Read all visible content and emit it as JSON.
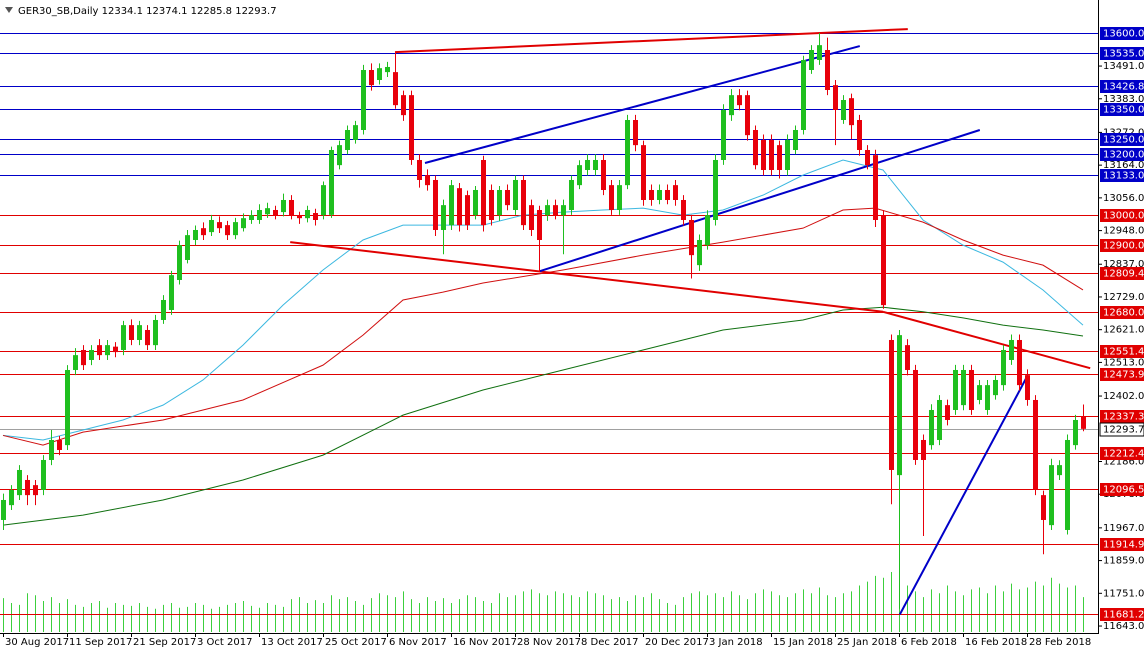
{
  "chart_data": {
    "type": "candlestick",
    "title": "GER30_SB,Daily  12334.1 12374.1 12285.8 12293.7",
    "categories": [
      "30 Aug 2017",
      null,
      null,
      null,
      null,
      null,
      null,
      null,
      "11 Sep 2017",
      null,
      null,
      null,
      null,
      null,
      null,
      null,
      "21 Sep 2017",
      null,
      null,
      null,
      null,
      null,
      null,
      null,
      "3 Oct 2017",
      null,
      null,
      null,
      null,
      null,
      null,
      null,
      "13 Oct 2017",
      null,
      null,
      null,
      null,
      null,
      null,
      null,
      "25 Oct 2017",
      null,
      null,
      null,
      null,
      null,
      null,
      null,
      "6 Nov 2017",
      null,
      null,
      null,
      null,
      null,
      null,
      null,
      "16 Nov 2017",
      null,
      null,
      null,
      null,
      null,
      null,
      null,
      "28 Nov 2017",
      null,
      null,
      null,
      null,
      null,
      null,
      null,
      "8 Dec 2017",
      null,
      null,
      null,
      null,
      null,
      null,
      null,
      "20 Dec 2017",
      null,
      null,
      null,
      null,
      null,
      null,
      null,
      "3 Jan 2018",
      null,
      null,
      null,
      null,
      null,
      null,
      null,
      "15 Jan 2018",
      null,
      null,
      null,
      null,
      null,
      null,
      null,
      "25 Jan 2018",
      null,
      null,
      null,
      null,
      null,
      null,
      null,
      "6 Feb 2018",
      null,
      null,
      null,
      null,
      null,
      null,
      null,
      "16 Feb 2018",
      null,
      null,
      null,
      null,
      null,
      null,
      null,
      "28 Feb 2018",
      null,
      null,
      null,
      null,
      null,
      null,
      null
    ],
    "open": [
      11993,
      12042,
      12075,
      12125,
      12108,
      12092,
      12191,
      12257,
      12240,
      12488,
      12554,
      12521,
      12570,
      12537,
      12565,
      12554,
      12636,
      12587,
      12620,
      12570,
      12653,
      12686,
      12785,
      12851,
      12917,
      12956,
      12943,
      12976,
      12966,
      12933,
      12956,
      12983,
      12983,
      13002,
      13016,
      13009,
      13049,
      12999,
      12989,
      13006,
      12999,
      13000,
      13164,
      13214,
      13247,
      13280,
      13478,
      13445,
      13471,
      13471,
      13395,
      13395,
      13181,
      13131,
      13115,
      12950,
      12966,
      13088,
      13065,
      12999,
      13181,
      13082,
      12999,
      13082,
      13016,
      13115,
      13032,
      13016,
      12999,
      13032,
      12999,
      13016,
      13098,
      13148,
      13148,
      13181,
      13098,
      13016,
      13098,
      13313,
      13230,
      13082,
      13049,
      13082,
      13098,
      13049,
      12983,
      12834,
      12900,
      12983,
      13181,
      13329,
      13395,
      13395,
      13280,
      13247,
      13247,
      13230,
      13148,
      13214,
      13280,
      13478,
      13511,
      13544,
      13428,
      13313,
      13385,
      13313,
      13214,
      13197,
      12999,
      12587,
      12141,
      12570,
      12488,
      12257,
      12240,
      12257,
      12372,
      12356,
      12372,
      12488,
      12389,
      12356,
      12405,
      12438,
      12521,
      12587,
      12471,
      12389,
      12075,
      11976,
      12141,
      11960,
      12240,
      12334.1
    ],
    "high": [
      12080,
      12108,
      12174,
      12141,
      12125,
      12207,
      12290,
      12270,
      12504,
      12560,
      12570,
      12570,
      12590,
      12587,
      12580,
      12650,
      12655,
      12650,
      12636,
      12670,
      12735,
      12815,
      12915,
      12950,
      12965,
      12975,
      13000,
      12995,
      12980,
      12990,
      13005,
      13015,
      13035,
      13040,
      13030,
      13070,
      13065,
      13010,
      13030,
      13020,
      13110,
      13225,
      13245,
      13295,
      13310,
      13495,
      13500,
      13500,
      13505,
      13535,
      13410,
      13410,
      13200,
      13150,
      13130,
      13050,
      13115,
      13105,
      13080,
      13095,
      13195,
      13100,
      13095,
      13100,
      13130,
      13130,
      13050,
      13030,
      13050,
      13050,
      13050,
      13130,
      13180,
      13200,
      13200,
      13200,
      13115,
      13115,
      13330,
      13330,
      13245,
      13100,
      13100,
      13100,
      13115,
      13065,
      13000,
      12935,
      13015,
      13200,
      13365,
      13415,
      13415,
      13410,
      13295,
      13265,
      13265,
      13245,
      13265,
      13295,
      13525,
      13560,
      13600,
      13585,
      13445,
      13395,
      13400,
      13330,
      13230,
      13215,
      13015,
      12605,
      12620,
      12590,
      12505,
      12275,
      12375,
      12405,
      12390,
      12505,
      12505,
      12505,
      12455,
      12455,
      12470,
      12570,
      12605,
      12605,
      12490,
      12405,
      12090,
      12195,
      12190,
      12275,
      12340,
      12374.1
    ],
    "low": [
      11960,
      12026,
      12059,
      12042,
      12042,
      12075,
      12174,
      12207,
      12224,
      12471,
      12488,
      12504,
      12521,
      12521,
      12530,
      12537,
      12570,
      12570,
      12554,
      12554,
      12640,
      12670,
      12770,
      12840,
      12900,
      12917,
      12930,
      12940,
      12917,
      12920,
      12945,
      12970,
      12970,
      12990,
      12985,
      12995,
      12985,
      12970,
      12975,
      12965,
      12985,
      12990,
      13150,
      13200,
      13235,
      13265,
      13410,
      13430,
      13455,
      13350,
      13310,
      13165,
      13090,
      13080,
      12930,
      12870,
      12950,
      12945,
      12950,
      12985,
      12945,
      12965,
      12980,
      13015,
      13000,
      12950,
      12930,
      12810,
      12980,
      12985,
      12870,
      13000,
      13085,
      13130,
      13130,
      13065,
      13000,
      13000,
      13085,
      13210,
      13030,
      13030,
      13035,
      13035,
      13030,
      12965,
      12790,
      12815,
      12885,
      12965,
      13165,
      13310,
      13345,
      13245,
      13150,
      13130,
      13130,
      13120,
      13130,
      13200,
      13265,
      13465,
      13495,
      13395,
      13230,
      13300,
      13250,
      13195,
      13150,
      12960,
      12690,
      12045,
      11700,
      12470,
      12175,
      11940,
      12225,
      12240,
      12305,
      12340,
      12355,
      12340,
      12375,
      12340,
      12390,
      12420,
      12505,
      12420,
      12370,
      12075,
      11880,
      11960,
      12125,
      11945,
      12225,
      12285.8
    ],
    "close": [
      12059,
      12092,
      12158,
      12075,
      12075,
      12191,
      12257,
      12224,
      12488,
      12537,
      12504,
      12554,
      12537,
      12570,
      12547,
      12636,
      12587,
      12636,
      12570,
      12653,
      12719,
      12801,
      12900,
      12933,
      12950,
      12933,
      12983,
      12956,
      12933,
      12976,
      12989,
      12999,
      13016,
      13022,
      12999,
      13049,
      12999,
      12989,
      13016,
      12983,
      13098,
      13214,
      13230,
      13280,
      13296,
      13478,
      13428,
      13484,
      13488,
      13362,
      13329,
      13181,
      13115,
      13098,
      12950,
      13032,
      13098,
      12966,
      12966,
      13082,
      12966,
      12983,
      13082,
      13032,
      13115,
      12966,
      12950,
      12917,
      13032,
      12999,
      13032,
      13115,
      13164,
      13181,
      13181,
      13082,
      13016,
      13098,
      13313,
      13230,
      13049,
      13049,
      13082,
      13049,
      13049,
      12983,
      12867,
      12917,
      12999,
      13181,
      13346,
      13395,
      13362,
      13263,
      13164,
      13148,
      13148,
      13148,
      13247,
      13280,
      13511,
      13544,
      13560,
      13412,
      13346,
      13379,
      13296,
      13214,
      13164,
      12983,
      12702,
      12158,
      12603,
      12488,
      12191,
      12191,
      12356,
      12389,
      12323,
      12488,
      12488,
      12356,
      12438,
      12438,
      12455,
      12554,
      12587,
      12438,
      12389,
      12092,
      11993,
      12174,
      12174,
      12257,
      12323,
      12293.7
    ],
    "up_color": "#1fbf1f",
    "down_color": "#e8000b",
    "volume": [
      35,
      30,
      28,
      40,
      38,
      32,
      36,
      30,
      34,
      28,
      26,
      30,
      32,
      25,
      30,
      28,
      27,
      30,
      26,
      24,
      28,
      30,
      25,
      26,
      30,
      28,
      24,
      26,
      28,
      30,
      32,
      27,
      25,
      30,
      28,
      26,
      34,
      36,
      30,
      33,
      30,
      38,
      34,
      36,
      32,
      28,
      35,
      40,
      38,
      36,
      42,
      34,
      30,
      36,
      32,
      35,
      30,
      34,
      38,
      36,
      32,
      30,
      40,
      36,
      38,
      42,
      44,
      40,
      38,
      42,
      40,
      38,
      36,
      42,
      40,
      38,
      34,
      36,
      32,
      38,
      36,
      40,
      34,
      30,
      28,
      36,
      40,
      42,
      38,
      40,
      36,
      42,
      38,
      34,
      40,
      44,
      42,
      38,
      36,
      40,
      44,
      40,
      46,
      38,
      36,
      40,
      42,
      48,
      52,
      58,
      56,
      62,
      50,
      48,
      42,
      36,
      44,
      40,
      48,
      42,
      38,
      44,
      46,
      40,
      48,
      42,
      50,
      44,
      46,
      52,
      48,
      56,
      50,
      46,
      48,
      36
    ],
    "volume_color": "#3ccf3c",
    "ylim": [
      11620,
      13709
    ],
    "yticks": [
      {
        "value": 13491,
        "label": "13491.0"
      },
      {
        "value": 13383,
        "label": "13383.0"
      },
      {
        "value": 13272,
        "label": "13272.0"
      },
      {
        "value": 13164,
        "label": "13164.0"
      },
      {
        "value": 13056,
        "label": "13056.0"
      },
      {
        "value": 12948,
        "label": "12948.0"
      },
      {
        "value": 12837,
        "label": "12837.0"
      },
      {
        "value": 12729,
        "label": "12729.0"
      },
      {
        "value": 12621,
        "label": "12621.0"
      },
      {
        "value": 12513,
        "label": "12513.0"
      },
      {
        "value": 12402,
        "label": "12402.0"
      },
      {
        "value": 12186,
        "label": "12186.0"
      },
      {
        "value": 12078,
        "label": "12078.0"
      },
      {
        "value": 11967,
        "label": "11967.0"
      },
      {
        "value": 11859,
        "label": "11859.0"
      },
      {
        "value": 11751,
        "label": "11751.0"
      },
      {
        "value": 11643,
        "label": "11643.0"
      }
    ],
    "levels": [
      {
        "value": 13600,
        "label": "13600.0",
        "color": "#0000c8"
      },
      {
        "value": 13535,
        "label": "13535.0",
        "color": "#0000c8"
      },
      {
        "value": 13426.8,
        "label": "13426.8",
        "color": "#0000c8"
      },
      {
        "value": 13350,
        "label": "13350.0",
        "color": "#0000c8"
      },
      {
        "value": 13250,
        "label": "13250.0",
        "color": "#0000c8"
      },
      {
        "value": 13200,
        "label": "13200.0",
        "color": "#0000c8"
      },
      {
        "value": 13133,
        "label": "13133.0",
        "color": "#0000c8"
      },
      {
        "value": 13000,
        "label": "13000.0",
        "color": "#e00000"
      },
      {
        "value": 12900,
        "label": "12900.0",
        "color": "#e00000"
      },
      {
        "value": 12809.4,
        "label": "12809.4",
        "color": "#e00000"
      },
      {
        "value": 12680,
        "label": "12680.0",
        "color": "#e00000"
      },
      {
        "value": 12551.4,
        "label": "12551.4",
        "color": "#e00000"
      },
      {
        "value": 12473.9,
        "label": "12473.9",
        "color": "#e00000"
      },
      {
        "value": 12337.3,
        "label": "12337.3",
        "color": "#e00000"
      },
      {
        "value": 12212.4,
        "label": "12212.4",
        "color": "#e00000"
      },
      {
        "value": 12096.5,
        "label": "12096.5",
        "color": "#e00000"
      },
      {
        "value": 11914.9,
        "label": "11914.9",
        "color": "#e00000"
      },
      {
        "value": 11681.2,
        "label": "11681.2",
        "color": "#e00000"
      }
    ],
    "last_price": {
      "value": 12293.7,
      "label": "12293.7",
      "color": "#a0a0a0"
    },
    "overlays": [
      {
        "color": "#3cb8e0",
        "width": 1,
        "x": [
          0,
          5,
          10,
          15,
          20,
          25,
          30,
          35,
          40,
          45,
          50,
          55,
          60,
          65,
          70,
          75,
          80,
          85,
          90,
          95,
          100,
          105,
          110,
          115,
          120,
          125,
          130,
          135
        ],
        "values": [
          12272,
          12257,
          12290,
          12323,
          12372,
          12455,
          12570,
          12702,
          12818,
          12917,
          12966,
          12966,
          12966,
          12999,
          13009,
          13016,
          13022,
          12999,
          13016,
          13065,
          13131,
          13181,
          13148,
          12983,
          12900,
          12844,
          12752,
          12636
        ]
      },
      {
        "color": "#d01010",
        "width": 1,
        "x": [
          0,
          5,
          10,
          20,
          30,
          40,
          45,
          50,
          55,
          60,
          70,
          80,
          90,
          100,
          105,
          109,
          115,
          120,
          125,
          130,
          135
        ],
        "values": [
          12272,
          12240,
          12283,
          12323,
          12389,
          12504,
          12603,
          12719,
          12745,
          12775,
          12818,
          12867,
          12910,
          12956,
          13016,
          13022,
          12976,
          12917,
          12867,
          12834,
          12752
        ]
      },
      {
        "color": "#107010",
        "width": 1,
        "x": [
          0,
          10,
          20,
          30,
          40,
          50,
          60,
          70,
          80,
          90,
          100,
          105,
          110,
          115,
          120,
          125,
          130,
          135
        ],
        "values": [
          11976,
          12009,
          12059,
          12125,
          12207,
          12339,
          12422,
          12488,
          12554,
          12620,
          12653,
          12686,
          12695,
          12680,
          12660,
          12636,
          12620,
          12600
        ]
      },
      {
        "color": "#e00000",
        "width": 2,
        "x": [
          49,
          113.1
        ],
        "values": [
          13537,
          13613
        ]
      },
      {
        "color": "#e00000",
        "width": 2,
        "x": [
          35.9,
          110
        ],
        "values": [
          12910,
          12680
        ]
      },
      {
        "color": "#e00000",
        "width": 2,
        "x": [
          110,
          135.9
        ],
        "values": [
          12680,
          12494
        ]
      },
      {
        "color": "#0000c8",
        "width": 2,
        "x": [
          52.75,
          107.1
        ],
        "values": [
          13171,
          13557
        ]
      },
      {
        "color": "#0000c8",
        "width": 2,
        "x": [
          67.1,
          122.1
        ],
        "values": [
          12814,
          13280
        ]
      },
      {
        "color": "#0000c8",
        "width": 2,
        "x": [
          112.1,
          128.1
        ],
        "values": [
          11681,
          12471
        ]
      }
    ]
  }
}
